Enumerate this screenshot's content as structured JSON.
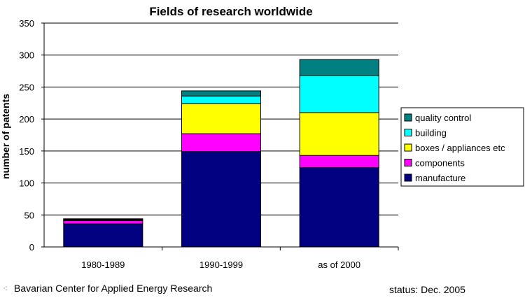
{
  "chart_data": {
    "type": "bar",
    "stacked": true,
    "title": "Fields of research worldwide",
    "xlabel": "",
    "ylabel": "number of patents",
    "ylim": [
      0,
      350
    ],
    "yticks": [
      0,
      50,
      100,
      150,
      200,
      250,
      300,
      350
    ],
    "grid": true,
    "legend_position": "right",
    "categories": [
      "1980-1989",
      "1990-1999",
      "as of 2000"
    ],
    "series": [
      {
        "name": "manufacture",
        "color": "#000080",
        "values": [
          36,
          149,
          124
        ]
      },
      {
        "name": "components",
        "color": "#FF00FF",
        "values": [
          5,
          28,
          19
        ]
      },
      {
        "name": "boxes / appliances etc",
        "color": "#FFFF00",
        "values": [
          1,
          47,
          67
        ]
      },
      {
        "name": "building",
        "color": "#00FFFF",
        "values": [
          1,
          12,
          58
        ]
      },
      {
        "name": "quality control",
        "color": "#008080",
        "values": [
          1,
          8,
          25
        ]
      }
    ]
  },
  "footer": {
    "source": "Bavarian Center for Applied Energy Research",
    "status": "status: Dec. 2005"
  }
}
